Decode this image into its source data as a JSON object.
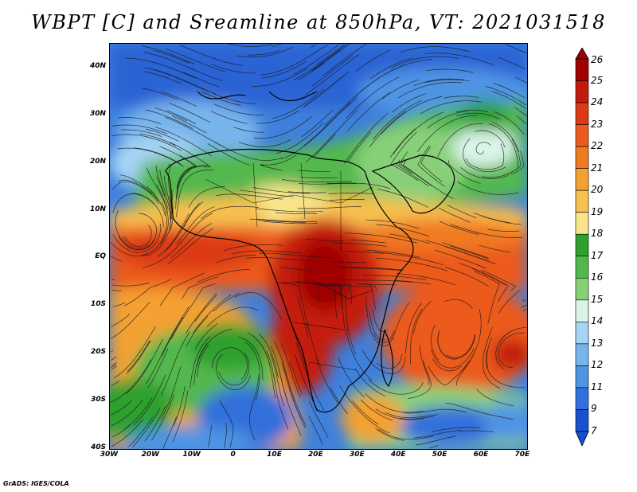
{
  "title": "WBPT [C] and Sreamline at 850hPa, VT: 2021031518",
  "credit": "GrADS: IGES/COLA",
  "map": {
    "lat_labels": [
      "40N",
      "30N",
      "20N",
      "10N",
      "EQ",
      "10S",
      "20S",
      "30S",
      "40S"
    ],
    "lat_values": [
      40,
      30,
      20,
      10,
      0,
      -10,
      -20,
      -30,
      -40
    ],
    "lon_labels": [
      "30W",
      "20W",
      "10W",
      "0",
      "10E",
      "20E",
      "30E",
      "40E",
      "50E",
      "60E",
      "70E"
    ],
    "lon_values": [
      -30,
      -20,
      -10,
      0,
      10,
      20,
      30,
      40,
      50,
      60,
      70
    ],
    "lat_range": [
      -40,
      45
    ],
    "lon_range": [
      -30,
      71
    ],
    "variable": "wet-bulb potential temperature",
    "overlay": "streamlines"
  },
  "colorbar": {
    "labels": [
      "26",
      "25",
      "24",
      "23",
      "22",
      "21",
      "20",
      "19",
      "18",
      "17",
      "16",
      "15",
      "14",
      "13",
      "12",
      "11",
      "9",
      "7"
    ],
    "colors": [
      "#a00000",
      "#c41a0a",
      "#dc3a14",
      "#ec5a1c",
      "#f07a20",
      "#f4a030",
      "#f7c050",
      "#f8e48a",
      "#2ea02e",
      "#52b84e",
      "#88d078",
      "#dcf4e8",
      "#a6d4f4",
      "#78b4ec",
      "#5094e4",
      "#3070dc",
      "#1850d0"
    ]
  }
}
